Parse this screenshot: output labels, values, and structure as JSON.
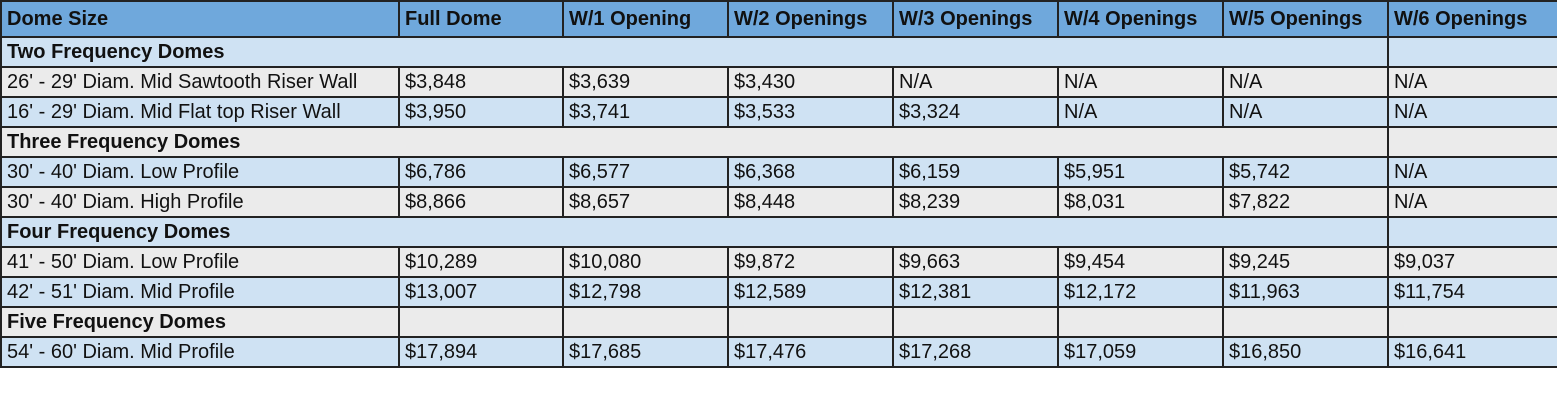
{
  "table": {
    "headers": [
      "Dome Size",
      "Full Dome",
      "W/1 Opening",
      "W/2 Openings",
      "W/3 Openings",
      "W/4 Openings",
      "W/5 Openings",
      "W/6 Openings"
    ],
    "sections": [
      {
        "title": "Two Frequency Domes",
        "rows": [
          [
            "26' - 29' Diam. Mid Sawtooth Riser Wall",
            "$3,848",
            "$3,639",
            "$3,430",
            "N/A",
            "N/A",
            "N/A",
            "N/A"
          ],
          [
            "16' - 29' Diam. Mid Flat top Riser Wall",
            "$3,950",
            "$3,741",
            "$3,533",
            "$3,324",
            "N/A",
            "N/A",
            "N/A"
          ]
        ]
      },
      {
        "title": "Three Frequency Domes",
        "rows": [
          [
            "30' - 40' Diam. Low Profile",
            "$6,786",
            "$6,577",
            "$6,368",
            "$6,159",
            "$5,951",
            "$5,742",
            "N/A"
          ],
          [
            "30' - 40' Diam. High Profile",
            "$8,866",
            "$8,657",
            "$8,448",
            "$8,239",
            "$8,031",
            "$7,822",
            "N/A"
          ]
        ]
      },
      {
        "title": "Four Frequency Domes",
        "rows": [
          [
            "41' - 50' Diam. Low Profile",
            "$10,289",
            "$10,080",
            "$9,872",
            "$9,663",
            "$9,454",
            "$9,245",
            "$9,037"
          ],
          [
            "42' - 51' Diam. Mid Profile",
            "$13,007",
            "$12,798",
            "$12,589",
            "$12,381",
            "$12,172",
            "$11,963",
            "$11,754"
          ]
        ]
      },
      {
        "title": "Five Frequency Domes",
        "rows": [
          [
            "54' - 60' Diam. Mid Profile",
            "$17,894",
            "$17,685",
            "$17,476",
            "$17,268",
            "$17,059",
            "$16,850",
            "$16,641"
          ]
        ]
      }
    ]
  }
}
